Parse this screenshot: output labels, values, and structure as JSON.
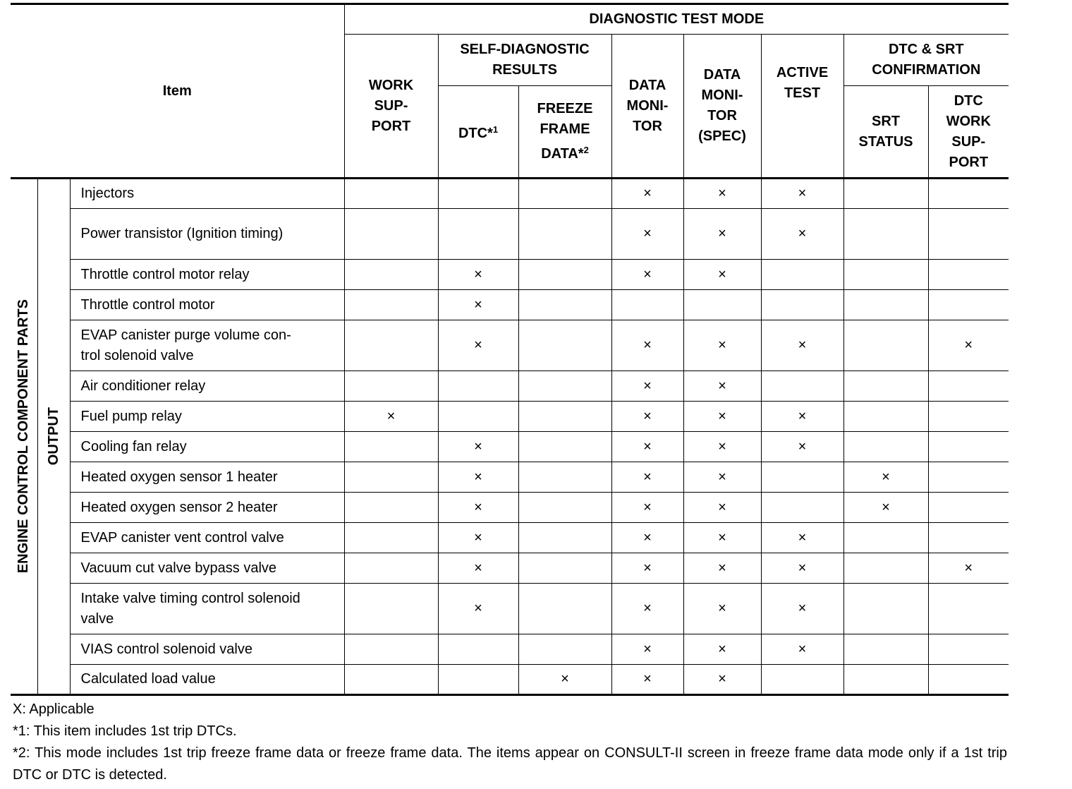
{
  "header": {
    "item": "Item",
    "group": "DIAGNOSTIC TEST MODE",
    "work_support": [
      "WORK",
      "SUP-",
      "PORT"
    ],
    "self_diag": [
      "SELF-DIAGNOSTIC",
      "RESULTS"
    ],
    "dtc": "DTC*",
    "dtc_sup": "1",
    "freeze": [
      "FREEZE",
      "FRAME",
      "DATA*"
    ],
    "freeze_sup": "2",
    "data_monitor": [
      "DATA",
      "MONI-",
      "TOR"
    ],
    "data_monitor_spec": [
      "DATA",
      "MONI-",
      "TOR",
      "(SPEC)"
    ],
    "active_test": [
      "ACTIVE",
      "TEST"
    ],
    "dtc_srt": [
      "DTC & SRT",
      "CONFIRMATION"
    ],
    "srt_status": [
      "SRT",
      "STATUS"
    ],
    "dtc_work_support": [
      "DTC",
      "WORK",
      "SUP-",
      "PORT"
    ]
  },
  "side": {
    "group": "ENGINE CONTROL COMPONENT PARTS",
    "sub": "OUTPUT"
  },
  "mark": "×",
  "columns": [
    "work_support",
    "dtc",
    "freeze_frame",
    "data_monitor",
    "data_monitor_spec",
    "active_test",
    "srt_status",
    "dtc_work_support"
  ],
  "rows": [
    {
      "item": [
        "Injectors"
      ],
      "marks": [
        0,
        0,
        0,
        1,
        1,
        1,
        0,
        0
      ]
    },
    {
      "item": [
        "Power transistor (Ignition timing)"
      ],
      "marks": [
        0,
        0,
        0,
        1,
        1,
        1,
        0,
        0
      ],
      "tall": true
    },
    {
      "item": [
        "Throttle control motor relay"
      ],
      "marks": [
        0,
        1,
        0,
        1,
        1,
        0,
        0,
        0
      ]
    },
    {
      "item": [
        "Throttle control motor"
      ],
      "marks": [
        0,
        1,
        0,
        0,
        0,
        0,
        0,
        0
      ]
    },
    {
      "item": [
        "EVAP canister purge volume con-",
        "trol solenoid valve"
      ],
      "marks": [
        0,
        1,
        0,
        1,
        1,
        1,
        0,
        1
      ]
    },
    {
      "item": [
        "Air conditioner relay"
      ],
      "marks": [
        0,
        0,
        0,
        1,
        1,
        0,
        0,
        0
      ]
    },
    {
      "item": [
        "Fuel pump relay"
      ],
      "marks": [
        1,
        0,
        0,
        1,
        1,
        1,
        0,
        0
      ]
    },
    {
      "item": [
        "Cooling fan relay"
      ],
      "marks": [
        0,
        1,
        0,
        1,
        1,
        1,
        0,
        0
      ]
    },
    {
      "item": [
        "Heated oxygen sensor 1 heater"
      ],
      "marks": [
        0,
        1,
        0,
        1,
        1,
        0,
        1,
        0
      ]
    },
    {
      "item": [
        "Heated oxygen sensor 2 heater"
      ],
      "marks": [
        0,
        1,
        0,
        1,
        1,
        0,
        1,
        0
      ]
    },
    {
      "item": [
        "EVAP canister vent control valve"
      ],
      "marks": [
        0,
        1,
        0,
        1,
        1,
        1,
        0,
        0
      ]
    },
    {
      "item": [
        "Vacuum cut valve bypass valve"
      ],
      "marks": [
        0,
        1,
        0,
        1,
        1,
        1,
        0,
        1
      ]
    },
    {
      "item": [
        "Intake valve timing control solenoid",
        "valve"
      ],
      "marks": [
        0,
        1,
        0,
        1,
        1,
        1,
        0,
        0
      ]
    },
    {
      "item": [
        "VIAS control solenoid valve"
      ],
      "marks": [
        0,
        0,
        0,
        1,
        1,
        1,
        0,
        0
      ]
    },
    {
      "item": [
        "Calculated load value"
      ],
      "marks": [
        0,
        0,
        1,
        1,
        1,
        0,
        0,
        0
      ]
    }
  ],
  "notes": [
    "X: Applicable",
    "*1: This item includes 1st trip DTCs.",
    "*2: This mode includes 1st trip freeze frame data or freeze frame data. The items appear on CONSULT-II screen in freeze frame data mode only if a 1st trip DTC or DTC is detected."
  ]
}
